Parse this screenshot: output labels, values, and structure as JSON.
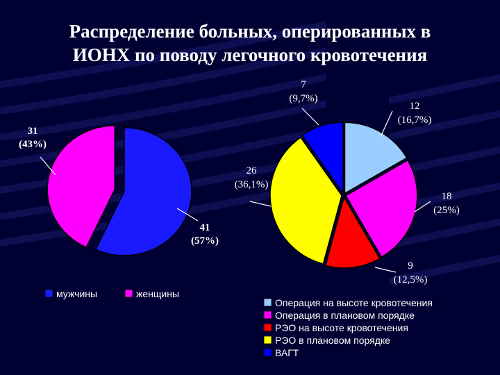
{
  "slide": {
    "title_line1": "Распределение больных, оперированных в",
    "title_line2": "ИОНХ по поводу легочного кровотечения"
  },
  "colors": {
    "background": "#000033",
    "stripe": "#1a1a6e"
  },
  "chart_data": [
    {
      "type": "pie",
      "slices": [
        {
          "name": "мужчины",
          "value": 41,
          "label": "41",
          "percent_label": "(57%)",
          "color": "#1a1aff"
        },
        {
          "name": "женщины",
          "value": 31,
          "label": "31",
          "percent_label": "(43%)",
          "color": "#ff00ff"
        }
      ],
      "legend": [
        "мужчины",
        "женщины"
      ],
      "legend_position": "bottom"
    },
    {
      "type": "pie",
      "slices": [
        {
          "name": "Операция на высоте кровотечения",
          "value": 12,
          "label": "12",
          "percent_label": "(16,7%)",
          "color": "#99ccff"
        },
        {
          "name": "Операция в плановом порядке",
          "value": 18,
          "label": "18",
          "percent_label": "(25%)",
          "color": "#ff00ff"
        },
        {
          "name": "РЭО на высоте кровотечения",
          "value": 9,
          "label": "9",
          "percent_label": "(12,5%)",
          "color": "#ff0000"
        },
        {
          "name": "РЭО в плановом порядке",
          "value": 26,
          "label": "26",
          "percent_label": "(36,1%)",
          "color": "#ffff00"
        },
        {
          "name": "ВАГТ",
          "value": 7,
          "label": "7",
          "percent_label": "(9,7%)",
          "color": "#0000ff"
        }
      ],
      "legend": [
        "Операция на высоте кровотечения",
        "Операция в плановом порядке",
        "РЭО на высоте кровотечения",
        "РЭО в плановом порядке",
        "ВАГТ"
      ],
      "legend_position": "bottom"
    }
  ]
}
